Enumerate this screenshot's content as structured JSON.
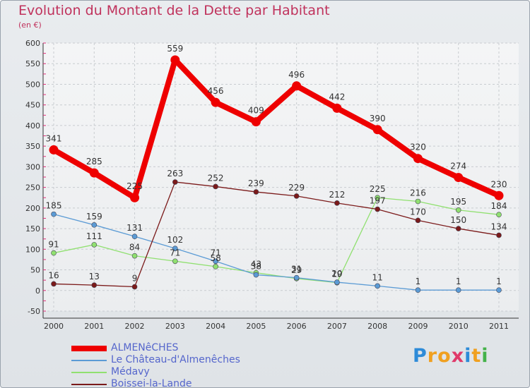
{
  "title": "Evolution du Montant de la Dette par Habitant",
  "unit": "(en €)",
  "logo": {
    "text": "Proxiti",
    "colors": [
      "#2e8bd8",
      "#f0a020",
      "#f0a020",
      "#e03a6a",
      "#2e8bd8",
      "#f0a020",
      "#44b24a"
    ]
  },
  "chart_data": {
    "type": "line",
    "title": "Evolution du Montant de la Dette par Habitant",
    "ylabel": "(en €)",
    "categories": [
      "2000",
      "2001",
      "2002",
      "2003",
      "2004",
      "2005",
      "2006",
      "2007",
      "2008",
      "2009",
      "2010",
      "2011"
    ],
    "ylim": [
      -50,
      600
    ],
    "yticks": [
      -50,
      0,
      50,
      100,
      150,
      200,
      250,
      300,
      350,
      400,
      450,
      500,
      550,
      600
    ],
    "grid": true,
    "legend_position": "bottom-left",
    "series": [
      {
        "name": "Médavy",
        "color": "#90e070",
        "values": [
          91,
          111,
          84,
          71,
          58,
          43,
          29,
          19,
          225,
          216,
          195,
          184
        ],
        "labels": [
          "91",
          "111",
          "84",
          "71",
          "58",
          "43",
          "29",
          "19",
          "225",
          "216",
          "195",
          "184"
        ]
      },
      {
        "name": "Le Château-d'Almenêches",
        "color": "#5b9bd5",
        "values": [
          185,
          159,
          131,
          102,
          71,
          38,
          31,
          20,
          11,
          1,
          1,
          1
        ],
        "labels": [
          "185",
          "159",
          "131",
          "102",
          "71",
          "38",
          "31",
          "20",
          "11",
          "1",
          "1",
          "1"
        ]
      },
      {
        "name": "Boissei-la-Lande",
        "color": "#7b1a1a",
        "values": [
          16,
          13,
          9,
          263,
          252,
          239,
          229,
          212,
          197,
          170,
          150,
          134
        ],
        "labels": [
          "16",
          "13",
          "9",
          "263",
          "252",
          "239",
          "229",
          "212",
          "197",
          "170",
          "150",
          "134"
        ]
      },
      {
        "name": "ALMENêCHES",
        "color": "#ee0000",
        "values": [
          341,
          285,
          225,
          559,
          456,
          409,
          496,
          442,
          390,
          320,
          274,
          230
        ],
        "labels": [
          "341",
          "285",
          "225",
          "559",
          "456",
          "409",
          "496",
          "442",
          "390",
          "320",
          "274",
          "230"
        ]
      }
    ],
    "legend_order": [
      "ALMENêCHES",
      "Le Château-d'Almenêches",
      "Médavy",
      "Boissei-la-Lande"
    ]
  }
}
